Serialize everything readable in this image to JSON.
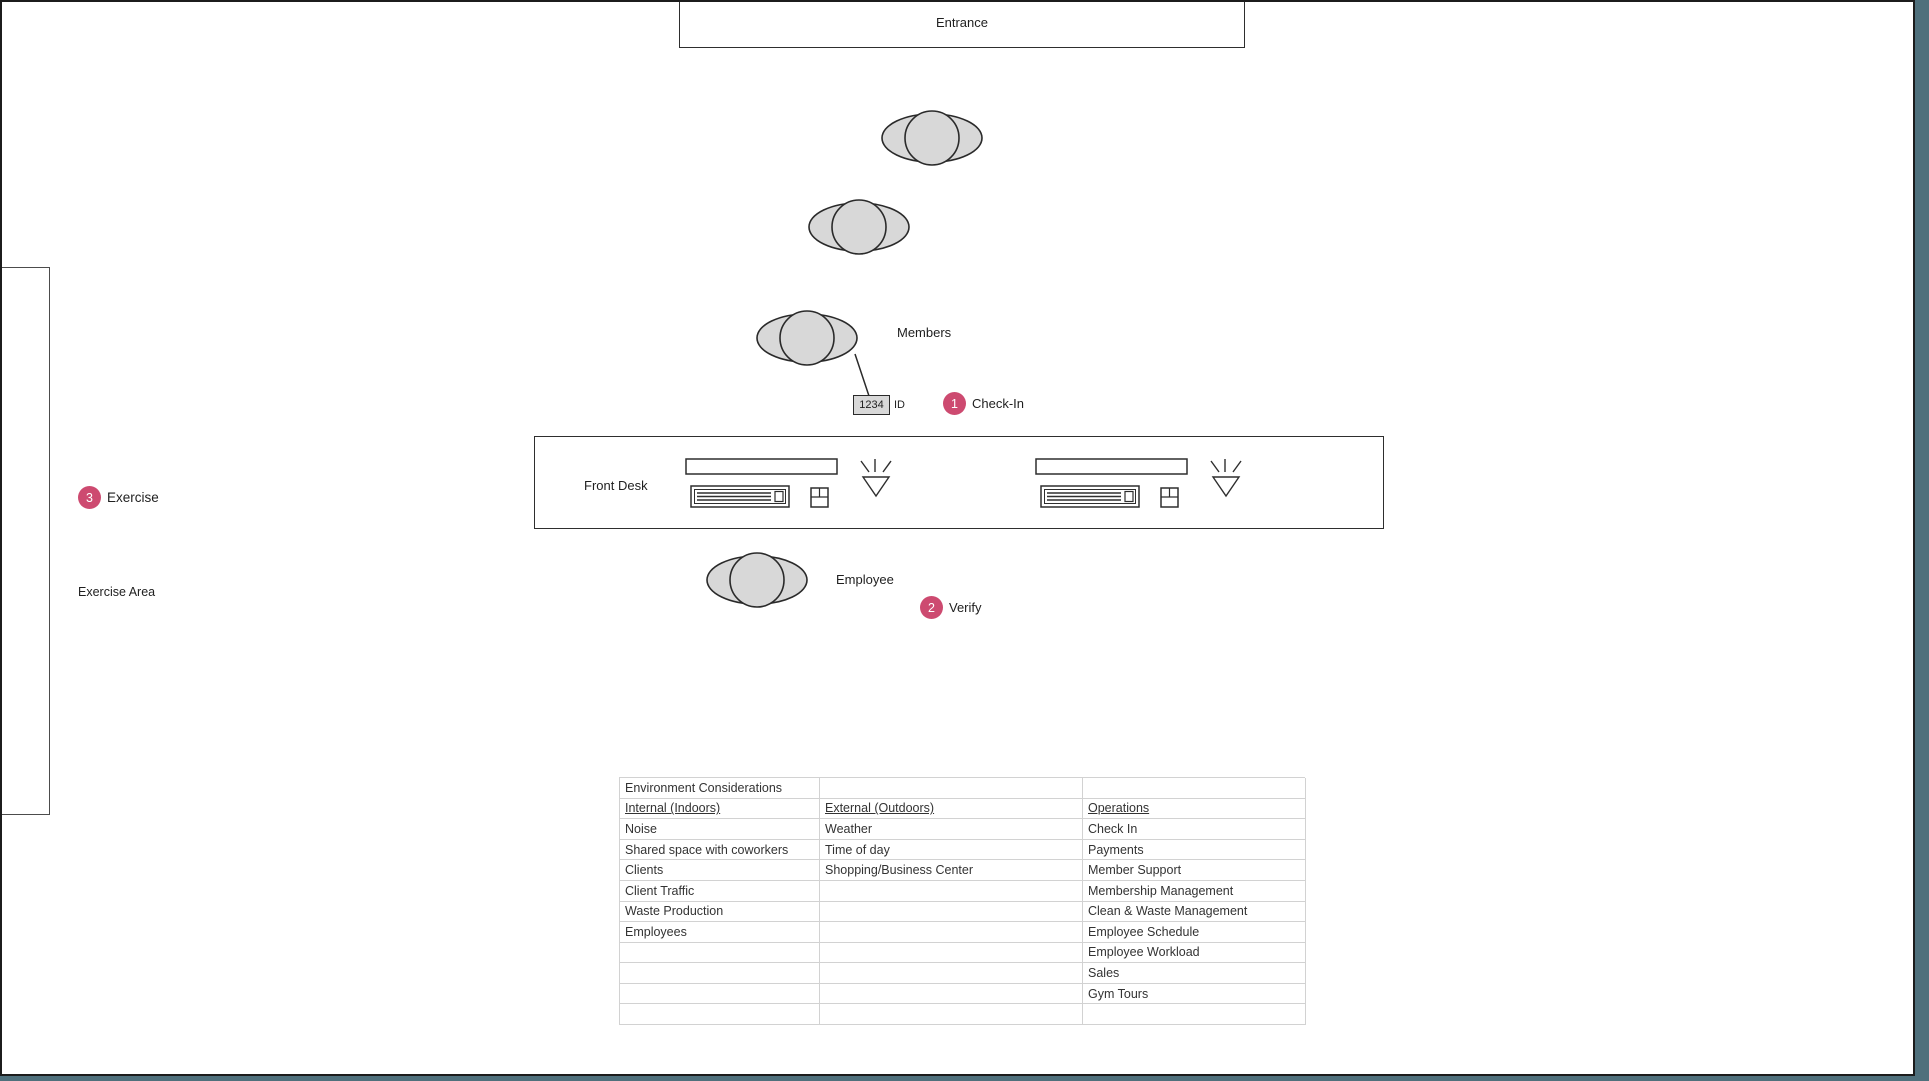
{
  "page": {
    "entrance_label": "Entrance",
    "front_desk_label": "Front Desk",
    "members_label": "Members",
    "employee_label": "Employee",
    "exercise_area_label": "Exercise Area",
    "id_value": "1234",
    "id_label": "ID"
  },
  "steps": [
    {
      "number": "1",
      "label": "Check-In"
    },
    {
      "number": "2",
      "label": "Verify"
    },
    {
      "number": "3",
      "label": "Exercise"
    }
  ],
  "colors": {
    "step_badge": "#cd4a70",
    "shape_fill": "#d8d8d8",
    "outside_canvas": "#4f707c"
  },
  "table": {
    "title_row_index": 0,
    "underline_row_index": 1,
    "rows": [
      [
        "Environment Considerations",
        "",
        ""
      ],
      [
        "Internal (Indoors)",
        "External (Outdoors)",
        "Operations"
      ],
      [
        "Noise",
        "Weather",
        "Check In"
      ],
      [
        "Shared space with coworkers",
        "Time of day",
        "Payments"
      ],
      [
        "Clients",
        "Shopping/Business Center",
        "Member Support"
      ],
      [
        "Client Traffic",
        "",
        "Membership Management"
      ],
      [
        "Waste Production",
        "",
        "Clean & Waste Management"
      ],
      [
        "Employees",
        "",
        "Employee Schedule"
      ],
      [
        "",
        "",
        "Employee Workload"
      ],
      [
        "",
        "",
        "Sales"
      ],
      [
        "",
        "",
        "Gym Tours"
      ],
      [
        "",
        "",
        ""
      ]
    ]
  }
}
